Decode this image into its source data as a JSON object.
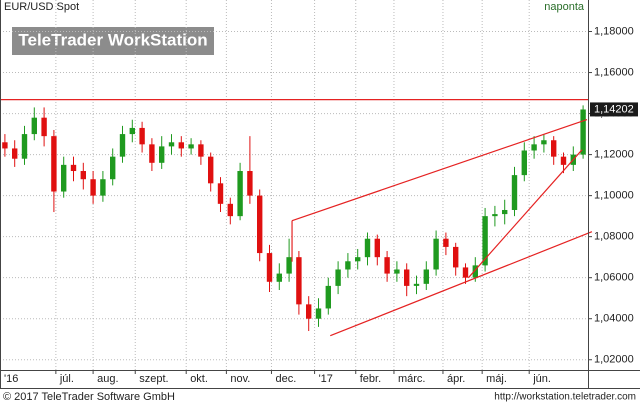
{
  "chart_data": {
    "type": "candlestick",
    "title": "EUR/USD Spot",
    "interval": "naponta",
    "watermark": "TeleTrader WorkStation",
    "footer_left": "© 2017 TeleTrader Software GmbH",
    "footer_right": "http://workstation.teletrader.com",
    "x": [
      0,
      1,
      2,
      3,
      4,
      5,
      6,
      7,
      8,
      9,
      10,
      11,
      12,
      13,
      14,
      15,
      16,
      17,
      18,
      19,
      20,
      21,
      22,
      23,
      24,
      25,
      26,
      27,
      28,
      29,
      30,
      31,
      32,
      33,
      34,
      35,
      36,
      37,
      38,
      39,
      40,
      41,
      42,
      43,
      44,
      45,
      46,
      47,
      48,
      49,
      50,
      51,
      52,
      53,
      54,
      55,
      56,
      57,
      58,
      59
    ],
    "open": [
      1.126,
      1.123,
      1.118,
      1.13,
      1.138,
      1.129,
      1.102,
      1.115,
      1.112,
      1.108,
      1.1,
      1.108,
      1.119,
      1.13,
      1.133,
      1.125,
      1.116,
      1.124,
      1.126,
      1.123,
      1.125,
      1.119,
      1.106,
      1.096,
      1.09,
      1.112,
      1.1,
      1.072,
      1.058,
      1.062,
      1.07,
      1.047,
      1.04,
      1.045,
      1.056,
      1.064,
      1.068,
      1.07,
      1.079,
      1.07,
      1.062,
      1.064,
      1.056,
      1.057,
      1.064,
      1.079,
      1.075,
      1.065,
      1.06,
      1.066,
      1.09,
      1.091,
      1.093,
      1.11,
      1.122,
      1.125,
      1.127,
      1.119,
      1.115,
      1.12
    ],
    "high": [
      1.13,
      1.127,
      1.134,
      1.143,
      1.143,
      1.132,
      1.119,
      1.119,
      1.116,
      1.112,
      1.112,
      1.123,
      1.134,
      1.137,
      1.136,
      1.128,
      1.129,
      1.13,
      1.129,
      1.128,
      1.127,
      1.121,
      1.109,
      1.099,
      1.116,
      1.129,
      1.103,
      1.076,
      1.067,
      1.079,
      1.073,
      1.051,
      1.05,
      1.06,
      1.068,
      1.072,
      1.074,
      1.082,
      1.081,
      1.073,
      1.068,
      1.067,
      1.061,
      1.068,
      1.083,
      1.082,
      1.077,
      1.067,
      1.07,
      1.094,
      1.095,
      1.098,
      1.114,
      1.126,
      1.129,
      1.13,
      1.129,
      1.121,
      1.124,
      1.144
    ],
    "low": [
      1.119,
      1.114,
      1.115,
      1.127,
      1.124,
      1.092,
      1.099,
      1.107,
      1.103,
      1.096,
      1.097,
      1.105,
      1.116,
      1.126,
      1.121,
      1.112,
      1.113,
      1.12,
      1.119,
      1.12,
      1.115,
      1.102,
      1.092,
      1.086,
      1.088,
      1.096,
      1.068,
      1.053,
      1.054,
      1.058,
      1.042,
      1.034,
      1.036,
      1.042,
      1.052,
      1.06,
      1.064,
      1.066,
      1.066,
      1.058,
      1.058,
      1.051,
      1.052,
      1.054,
      1.061,
      1.071,
      1.061,
      1.057,
      1.058,
      1.063,
      1.085,
      1.086,
      1.09,
      1.107,
      1.118,
      1.121,
      1.115,
      1.111,
      1.112,
      1.118
    ],
    "close": [
      1.123,
      1.118,
      1.13,
      1.138,
      1.129,
      1.102,
      1.115,
      1.112,
      1.108,
      1.1,
      1.108,
      1.119,
      1.13,
      1.133,
      1.125,
      1.116,
      1.124,
      1.126,
      1.123,
      1.125,
      1.119,
      1.106,
      1.096,
      1.09,
      1.112,
      1.1,
      1.072,
      1.058,
      1.062,
      1.07,
      1.047,
      1.04,
      1.045,
      1.056,
      1.064,
      1.068,
      1.07,
      1.079,
      1.07,
      1.062,
      1.064,
      1.056,
      1.057,
      1.064,
      1.079,
      1.075,
      1.065,
      1.06,
      1.066,
      1.09,
      1.091,
      1.093,
      1.11,
      1.122,
      1.125,
      1.127,
      1.119,
      1.115,
      1.12,
      1.142
    ],
    "up_color": "#1f9a1f",
    "down_color": "#e01010",
    "line_color": "#e52222",
    "last_price": {
      "value": 1.14202,
      "label": "1,14202"
    },
    "trendlines": [
      [
        -0.5,
        1.1468,
        59.5,
        1.1468
      ],
      [
        29.3,
        1.0878,
        59.4,
        1.1371
      ],
      [
        29.3,
        1.0878,
        29.3,
        1.0678
      ],
      [
        33.2,
        1.0317,
        59.9,
        1.0824
      ],
      [
        47.3,
        1.06,
        58.9,
        1.1224
      ]
    ],
    "xlim": [
      -0.5,
      59.5
    ],
    "xticks": [
      {
        "value": -0.5,
        "label": "'16"
      },
      {
        "value": 5.2,
        "label": "júl."
      },
      {
        "value": 9.0,
        "label": "aug."
      },
      {
        "value": 13.3,
        "label": "szept."
      },
      {
        "value": 18.5,
        "label": "okt."
      },
      {
        "value": 22.6,
        "label": "nov."
      },
      {
        "value": 27.2,
        "label": "dec."
      },
      {
        "value": 31.6,
        "label": "'17"
      },
      {
        "value": 35.8,
        "label": "febr."
      },
      {
        "value": 39.7,
        "label": "márc."
      },
      {
        "value": 44.7,
        "label": "ápr."
      },
      {
        "value": 48.7,
        "label": "máj."
      },
      {
        "value": 53.5,
        "label": "jún."
      }
    ],
    "ylim": [
      1.015,
      1.19
    ],
    "yticks": [
      {
        "value": 1.02,
        "label": "1,02000"
      },
      {
        "value": 1.04,
        "label": "1,04000"
      },
      {
        "value": 1.06,
        "label": "1,06000"
      },
      {
        "value": 1.08,
        "label": "1,08000"
      },
      {
        "value": 1.1,
        "label": "1,10000"
      },
      {
        "value": 1.12,
        "label": "1,12000"
      },
      {
        "value": 1.14,
        "label": "1,14000"
      },
      {
        "value": 1.16,
        "label": "1,16000"
      },
      {
        "value": 1.18,
        "label": "1,18000"
      }
    ],
    "grid": true
  }
}
